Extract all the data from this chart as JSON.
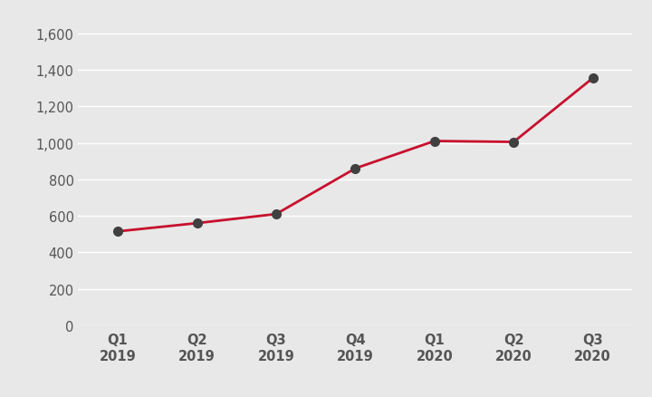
{
  "x_labels_line1": [
    "Q1",
    "Q2",
    "Q3",
    "Q4",
    "Q1",
    "Q2",
    "Q3"
  ],
  "x_labels_line2": [
    "2019",
    "2019",
    "2019",
    "2019",
    "2020",
    "2020",
    "2020"
  ],
  "y_values": [
    515,
    560,
    610,
    860,
    1010,
    1005,
    1355
  ],
  "line_color": "#C8102E",
  "marker_color": "#404040",
  "marker_size": 7,
  "line_width": 2.0,
  "ylim": [
    0,
    1700
  ],
  "yticks": [
    0,
    200,
    400,
    600,
    800,
    1000,
    1200,
    1400,
    1600
  ],
  "background_color": "#E8E8E8",
  "grid_color": "#ffffff",
  "tick_label_color": "#555555",
  "y_tick_fontsize": 10.5,
  "x_tick_fontsize": 10.5
}
